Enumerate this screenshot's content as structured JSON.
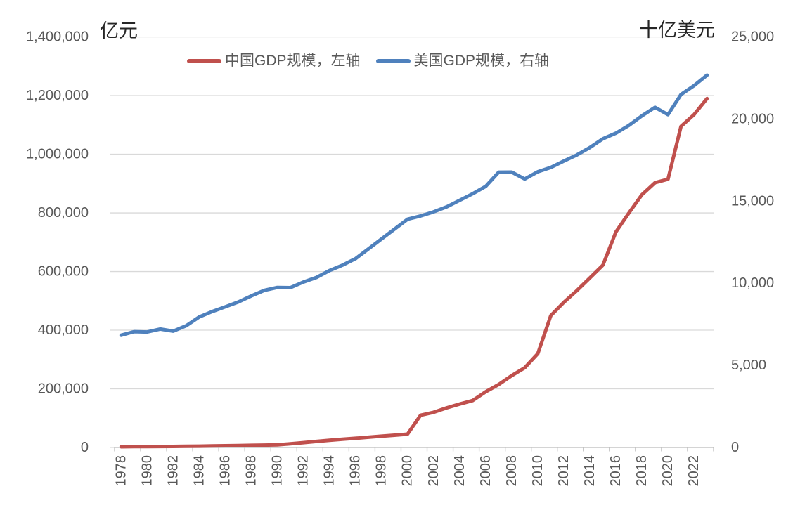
{
  "chart_data": {
    "type": "line",
    "title": "",
    "left_axis": {
      "title": "亿元",
      "min": 0,
      "max": 1400000,
      "step": 200000,
      "tick_labels": [
        "1,400,000",
        "1,200,000",
        "1,000,000",
        "800,000",
        "600,000",
        "400,000",
        "200,000",
        "0"
      ]
    },
    "right_axis": {
      "title": "十亿美元",
      "min": 0,
      "max": 25000,
      "step": 5000,
      "tick_labels": [
        "25,000",
        "20,000",
        "15,000",
        "10,000",
        "5,000",
        "0"
      ]
    },
    "x": [
      1978,
      1979,
      1980,
      1981,
      1982,
      1983,
      1984,
      1985,
      1986,
      1987,
      1988,
      1989,
      1990,
      1991,
      1992,
      1993,
      1994,
      1995,
      1996,
      1997,
      1998,
      1999,
      2000,
      2001,
      2002,
      2003,
      2004,
      2005,
      2006,
      2007,
      2008,
      2009,
      2010,
      2011,
      2012,
      2013,
      2014,
      2015,
      2016,
      2017,
      2018,
      2019,
      2020,
      2021,
      2022,
      2023
    ],
    "x_tick_labels": [
      "1978",
      "1980",
      "1982",
      "1984",
      "1986",
      "1988",
      "1990",
      "1992",
      "1994",
      "1996",
      "1998",
      "2000",
      "2002",
      "2004",
      "2006",
      "2008",
      "2010",
      "2012",
      "2014",
      "2016",
      "2018",
      "2020",
      "2022"
    ],
    "x_label_step": 2,
    "grid": "horizontal",
    "legend_position": "top",
    "colors": {
      "china_line": "#C0504D",
      "us_line": "#4F81BD",
      "gridline": "#D9D9D9",
      "axis_line": "#BFBFBF",
      "tick_text": "#595959",
      "title_text": "#262626"
    },
    "series": [
      {
        "name": "中国GDP规模，左轴",
        "axis": "left",
        "color": "#C0504D",
        "values": [
          2500,
          2800,
          3100,
          3400,
          3700,
          4100,
          4600,
          5200,
          5900,
          6600,
          7400,
          8100,
          8800,
          12500,
          16500,
          20500,
          24500,
          28000,
          31500,
          35000,
          38500,
          42000,
          45500,
          110000,
          120000,
          135000,
          148000,
          160000,
          190000,
          215000,
          245000,
          272000,
          320000,
          450000,
          495000,
          535000,
          578000,
          622000,
          735000,
          800000,
          862000,
          903000,
          915000,
          1095000,
          1135000,
          1190000
        ]
      },
      {
        "name": "美国GDP规模，右轴",
        "axis": "right",
        "color": "#4F81BD",
        "values": [
          6837,
          7054,
          7034,
          7214,
          7084,
          7413,
          7949,
          8277,
          8564,
          8859,
          9231,
          9570,
          9744,
          9734,
          10076,
          10353,
          10771,
          11100,
          11500,
          12100,
          12700,
          13300,
          13900,
          14100,
          14350,
          14650,
          15050,
          15450,
          15900,
          16763,
          16771,
          16349,
          16790,
          17052,
          17443,
          17812,
          18262,
          18799,
          19141,
          19612,
          20194,
          20715,
          20267,
          21495,
          22035,
          22671
        ]
      }
    ]
  }
}
